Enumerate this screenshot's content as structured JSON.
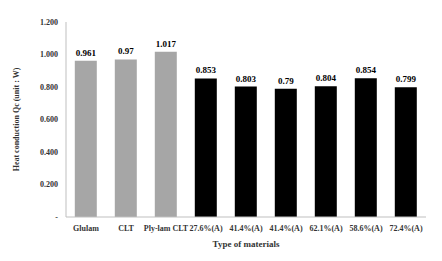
{
  "chart_data": {
    "type": "bar",
    "xlabel": "Type of materials",
    "ylabel": "Heat conduction Qc (unit : W)",
    "categories": [
      "Glulam",
      "CLT",
      "Ply-lam CLT",
      "27.6%(A)",
      "41.4%(A)",
      "41.4%(A)",
      "62.1%(A)",
      "58.6%(A)",
      "72.4%(A)"
    ],
    "values": [
      0.961,
      0.97,
      1.017,
      0.853,
      0.803,
      0.79,
      0.804,
      0.854,
      0.799
    ],
    "colors": [
      "#a6a6a6",
      "#a6a6a6",
      "#a6a6a6",
      "#000000",
      "#000000",
      "#000000",
      "#000000",
      "#000000",
      "#000000"
    ],
    "ylim": [
      0,
      1.2
    ],
    "yticks": [
      {
        "value": 0,
        "label": "-"
      },
      {
        "value": 0.2,
        "label": "0.200"
      },
      {
        "value": 0.4,
        "label": "0.400"
      },
      {
        "value": 0.6,
        "label": "0.600"
      },
      {
        "value": 0.8,
        "label": "0.800"
      },
      {
        "value": 1.0,
        "label": "1.000"
      },
      {
        "value": 1.2,
        "label": "1.200"
      }
    ],
    "grid": false,
    "data_labels": true
  }
}
